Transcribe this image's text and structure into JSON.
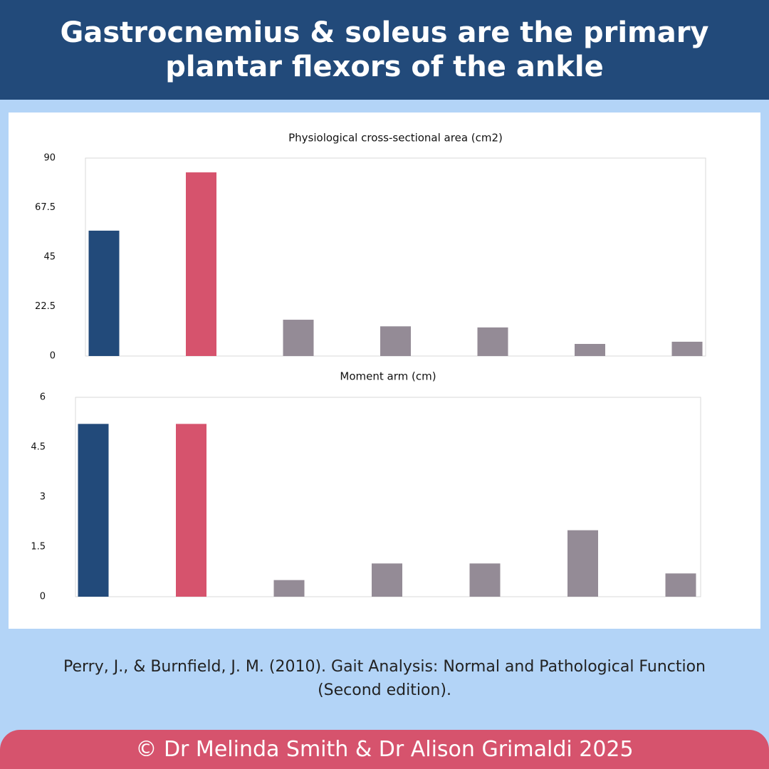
{
  "title": "Gastrocnemius & soleus are the primary plantar flexors of the ankle",
  "chart_data": [
    {
      "type": "bar",
      "title": "Physiological cross-sectional area (cm2)",
      "values": [
        57,
        83.5,
        16.5,
        13.5,
        13,
        5.5,
        6.5
      ],
      "colors": [
        "#224a7a",
        "#d6536d",
        "#948b96",
        "#948b96",
        "#948b96",
        "#948b96",
        "#948b96"
      ],
      "ylim": [
        0,
        90
      ],
      "yticks": [
        0,
        22.5,
        45,
        67.5,
        90
      ]
    },
    {
      "type": "bar",
      "title": "Moment arm (cm)",
      "values": [
        5.2,
        5.2,
        0.5,
        1,
        1,
        2,
        0.7
      ],
      "colors": [
        "#224a7a",
        "#d6536d",
        "#948b96",
        "#948b96",
        "#948b96",
        "#948b96",
        "#948b96"
      ],
      "ylim": [
        0,
        6
      ],
      "yticks": [
        0,
        1.5,
        3,
        4.5,
        6
      ]
    }
  ],
  "citation": "Perry, J., & Burnfield, J. M. (2010). Gait Analysis: Normal and Pathological Function (Second edition).",
  "footer": "© Dr Melinda Smith & Dr Alison Grimaldi 2025"
}
